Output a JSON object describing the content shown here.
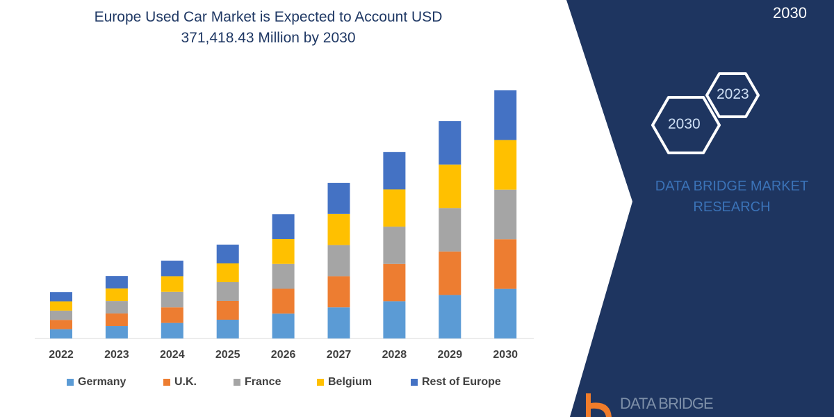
{
  "title": [
    "Europe Used Car Market is Expected to Account USD",
    "371,418.43 Million by 2030"
  ],
  "panel": {
    "top_year": "2030",
    "hex_years": [
      "2030",
      "2023"
    ],
    "brand_lines": [
      "DATA BRIDGE MARKET",
      "RESEARCH"
    ],
    "logo_text": "DATA BRIDGE",
    "colors": {
      "panel": "#1e3560",
      "brand_text": "#3b73b8",
      "logo_orange": "#f07c2a"
    }
  },
  "chart_data": {
    "type": "bar",
    "stacked": true,
    "title": "Europe Used Car Market is Expected to Account USD 371,418.43 Million by 2030",
    "xlabel": "",
    "ylabel": "",
    "grid": false,
    "legend_position": "bottom",
    "categories": [
      "2022",
      "2023",
      "2024",
      "2025",
      "2026",
      "2027",
      "2028",
      "2029",
      "2030"
    ],
    "series": [
      {
        "name": "Germany",
        "color": "#5b9bd5",
        "values": [
          13900,
          18700,
          23300,
          28100,
          37200,
          46600,
          55800,
          65100,
          74284
        ]
      },
      {
        "name": "U.K.",
        "color": "#ed7d31",
        "values": [
          13900,
          18700,
          23300,
          28100,
          37200,
          46600,
          55800,
          65100,
          74284
        ]
      },
      {
        "name": "France",
        "color": "#a5a5a5",
        "values": [
          13900,
          18700,
          23300,
          28100,
          37200,
          46600,
          55800,
          65100,
          74284
        ]
      },
      {
        "name": "Belgium",
        "color": "#ffc000",
        "values": [
          13900,
          18700,
          23300,
          28100,
          37200,
          46600,
          55800,
          65100,
          74283
        ]
      },
      {
        "name": "Rest of Europe",
        "color": "#4472c4",
        "values": [
          13900,
          18700,
          23300,
          28100,
          37200,
          46600,
          55800,
          65100,
          74283
        ]
      }
    ]
  }
}
